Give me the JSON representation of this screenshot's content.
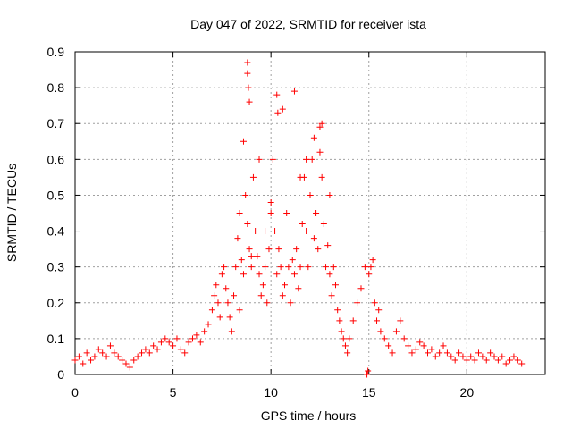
{
  "chart_data": {
    "type": "scatter",
    "title": "Day 047 of 2022, SRMTID for receiver ista",
    "xlabel": "GPS time / hours",
    "ylabel": "SRMTID / TECUs",
    "xlim": [
      0,
      24
    ],
    "ylim": [
      0,
      0.9
    ],
    "xticks": [
      0,
      5,
      10,
      15,
      20
    ],
    "xtick_labels": [
      "0",
      "5",
      "10",
      "15",
      "20"
    ],
    "yticks": [
      0,
      0.1,
      0.2,
      0.3,
      0.4,
      0.5,
      0.6,
      0.7,
      0.8,
      0.9
    ],
    "ytick_labels": [
      "0",
      "0.1",
      "0.2",
      "0.3",
      "0.4",
      "0.5",
      "0.6",
      "0.7",
      "0.8",
      "0.9"
    ],
    "grid": true,
    "marker": "+",
    "color": "#ff0000",
    "series": [
      {
        "name": "SRMTID",
        "x": [
          0.0,
          0.2,
          0.4,
          0.6,
          0.8,
          1.0,
          1.2,
          1.4,
          1.6,
          1.8,
          2.0,
          2.2,
          2.4,
          2.6,
          2.8,
          3.0,
          3.2,
          3.4,
          3.6,
          3.8,
          4.0,
          4.2,
          4.4,
          4.6,
          4.8,
          5.0,
          5.2,
          5.4,
          5.6,
          5.8,
          6.0,
          6.2,
          6.4,
          6.6,
          6.8,
          7.0,
          7.1,
          7.2,
          7.3,
          7.4,
          7.5,
          7.6,
          7.7,
          7.8,
          7.9,
          8.0,
          8.1,
          8.2,
          8.3,
          8.4,
          8.5,
          8.6,
          8.7,
          8.8,
          8.9,
          9.0,
          9.1,
          9.2,
          9.3,
          9.4,
          9.5,
          9.6,
          9.7,
          9.8,
          9.9,
          10.0,
          10.1,
          10.2,
          10.3,
          10.4,
          10.5,
          10.6,
          10.7,
          10.8,
          10.9,
          11.0,
          11.1,
          11.2,
          11.3,
          11.4,
          11.5,
          11.6,
          11.7,
          11.8,
          11.9,
          12.0,
          12.1,
          12.2,
          12.3,
          12.4,
          12.5,
          12.6,
          12.7,
          12.8,
          12.9,
          13.0,
          13.1,
          13.2,
          13.3,
          13.4,
          13.5,
          13.6,
          13.7,
          13.8,
          13.9,
          14.0,
          14.2,
          14.4,
          14.6,
          14.8,
          15.0,
          15.1,
          15.2,
          15.3,
          15.4,
          15.5,
          15.6,
          15.8,
          16.0,
          16.2,
          16.4,
          16.6,
          16.8,
          17.0,
          17.2,
          17.4,
          17.6,
          17.8,
          18.0,
          18.2,
          18.4,
          18.6,
          18.8,
          19.0,
          19.2,
          19.4,
          19.6,
          19.8,
          20.0,
          20.2,
          20.4,
          20.6,
          20.8,
          21.0,
          21.2,
          21.4,
          21.6,
          21.8,
          22.0,
          22.2,
          22.4,
          22.6,
          22.8,
          8.8,
          8.8,
          8.85,
          8.9,
          10.3,
          10.35,
          11.2,
          12.5,
          12.6,
          8.6,
          9.4,
          10.6,
          11.8,
          12.2,
          13.0,
          9.0,
          9.7,
          10.0,
          11.5,
          8.4,
          14.9,
          14.95
        ],
        "y": [
          0.04,
          0.05,
          0.03,
          0.06,
          0.04,
          0.05,
          0.07,
          0.06,
          0.05,
          0.08,
          0.06,
          0.05,
          0.04,
          0.03,
          0.02,
          0.04,
          0.05,
          0.06,
          0.07,
          0.06,
          0.08,
          0.07,
          0.09,
          0.1,
          0.09,
          0.08,
          0.1,
          0.07,
          0.06,
          0.09,
          0.1,
          0.11,
          0.09,
          0.12,
          0.14,
          0.18,
          0.22,
          0.25,
          0.2,
          0.16,
          0.28,
          0.3,
          0.24,
          0.2,
          0.16,
          0.12,
          0.22,
          0.3,
          0.38,
          0.45,
          0.32,
          0.28,
          0.5,
          0.42,
          0.35,
          0.3,
          0.55,
          0.4,
          0.33,
          0.28,
          0.22,
          0.25,
          0.3,
          0.2,
          0.35,
          0.48,
          0.6,
          0.4,
          0.28,
          0.35,
          0.3,
          0.22,
          0.25,
          0.45,
          0.3,
          0.2,
          0.32,
          0.28,
          0.35,
          0.24,
          0.3,
          0.42,
          0.55,
          0.4,
          0.3,
          0.5,
          0.6,
          0.38,
          0.45,
          0.35,
          0.62,
          0.55,
          0.42,
          0.3,
          0.36,
          0.28,
          0.22,
          0.3,
          0.25,
          0.18,
          0.15,
          0.12,
          0.1,
          0.08,
          0.06,
          0.1,
          0.15,
          0.2,
          0.24,
          0.3,
          0.28,
          0.3,
          0.32,
          0.2,
          0.15,
          0.18,
          0.12,
          0.1,
          0.08,
          0.06,
          0.12,
          0.15,
          0.1,
          0.08,
          0.06,
          0.07,
          0.09,
          0.08,
          0.06,
          0.07,
          0.05,
          0.06,
          0.08,
          0.06,
          0.05,
          0.04,
          0.06,
          0.05,
          0.04,
          0.05,
          0.04,
          0.06,
          0.05,
          0.04,
          0.06,
          0.05,
          0.04,
          0.05,
          0.03,
          0.04,
          0.05,
          0.04,
          0.03,
          0.87,
          0.84,
          0.8,
          0.76,
          0.78,
          0.73,
          0.79,
          0.69,
          0.7,
          0.65,
          0.6,
          0.74,
          0.6,
          0.66,
          0.5,
          0.33,
          0.4,
          0.45,
          0.55,
          0.18,
          0.0,
          0.01
        ]
      }
    ]
  }
}
